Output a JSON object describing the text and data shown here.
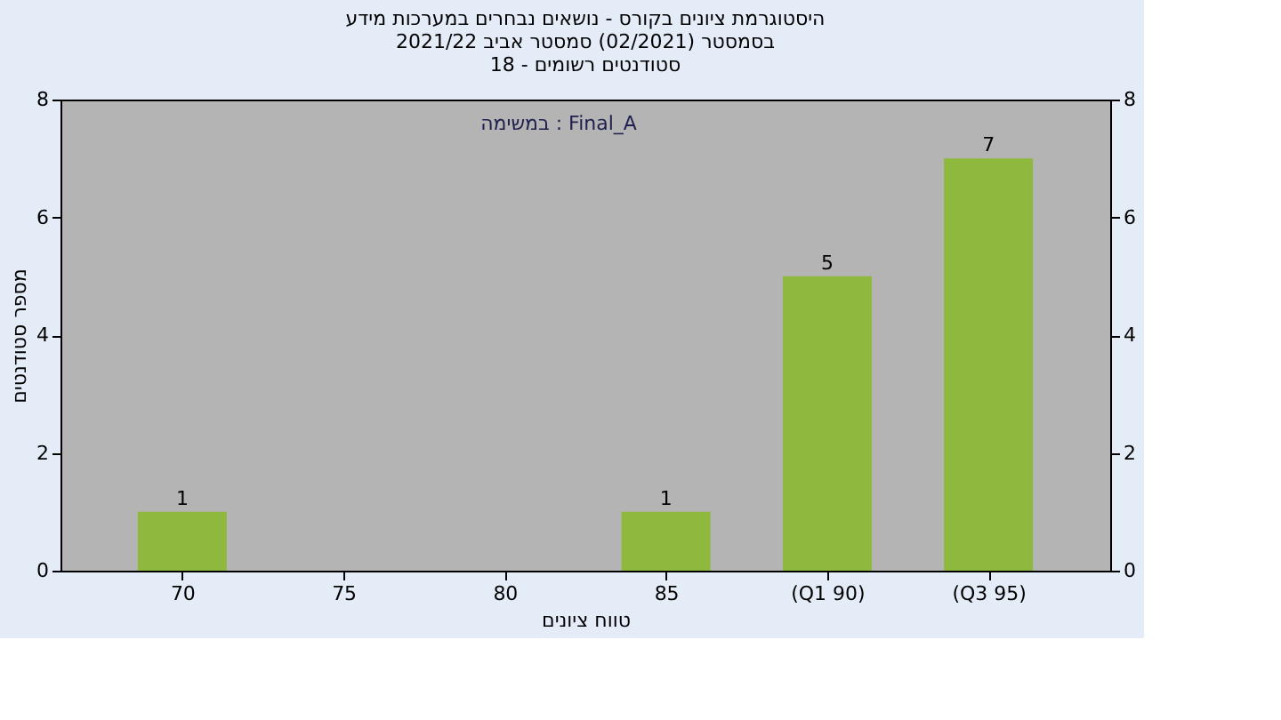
{
  "chart_data": {
    "type": "bar",
    "title": [
      "היסטוגרמת ציונים בקורס - נושאים נבחרים במערכות מידע",
      "בסמסטר  (02/2021)  סמסטר אביב 2021/22",
      "סטודנטים רשומים - 18"
    ],
    "xlabel": "טווח ציונים",
    "ylabel": "מספר סטודנטים",
    "annotations": [
      "במשימה : Final_A"
    ],
    "categories": [
      "70",
      "75",
      "80",
      "85",
      "(Q1 90)",
      "(Q3 95)"
    ],
    "values": [
      1,
      0,
      0,
      1,
      5,
      7
    ],
    "value_labels": [
      "1",
      null,
      null,
      "1",
      "5",
      "7"
    ],
    "color": "#8fb83e",
    "ylim": [
      0,
      8
    ],
    "yticks": [
      0,
      2,
      4,
      6,
      8
    ],
    "y2lim": [
      0,
      8
    ],
    "y2ticks": [
      0,
      2,
      4,
      6,
      8
    ],
    "grid": false
  }
}
